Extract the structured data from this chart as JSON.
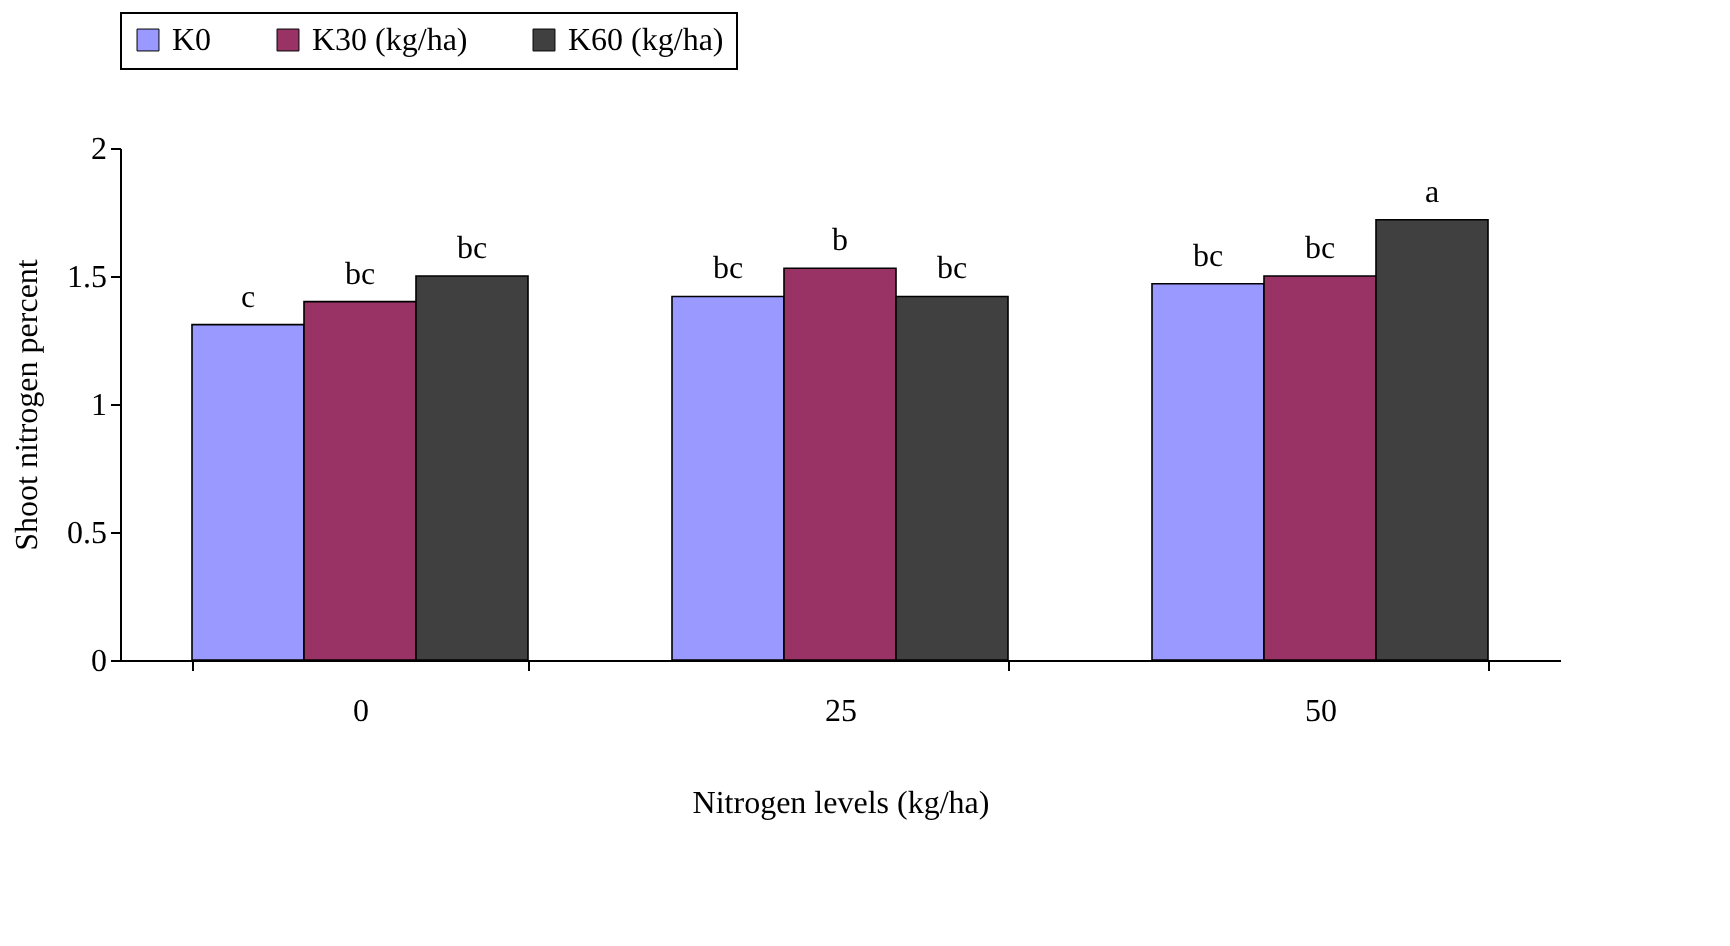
{
  "chart_data": {
    "type": "bar",
    "xlabel": "Nitrogen levels (kg/ha)",
    "ylabel": "Shoot nitrogen percent",
    "categories": [
      "0",
      "25",
      "50"
    ],
    "series": [
      {
        "name": "K0",
        "color": "#9999ff",
        "values": [
          1.31,
          1.42,
          1.47
        ],
        "value_labels": [
          "c",
          "bc",
          "bc"
        ]
      },
      {
        "name": "K30 (kg/ha)",
        "color": "#993366",
        "values": [
          1.4,
          1.53,
          1.5
        ],
        "value_labels": [
          "bc",
          "b",
          "bc"
        ]
      },
      {
        "name": "K60 (kg/ha)",
        "color": "#404040",
        "values": [
          1.5,
          1.42,
          1.72
        ],
        "value_labels": [
          "bc",
          "bc",
          "a"
        ]
      }
    ],
    "ylim": [
      0,
      2
    ],
    "yticks": [
      0,
      0.5,
      1,
      1.5,
      2
    ],
    "grid": false,
    "legend": "top"
  }
}
